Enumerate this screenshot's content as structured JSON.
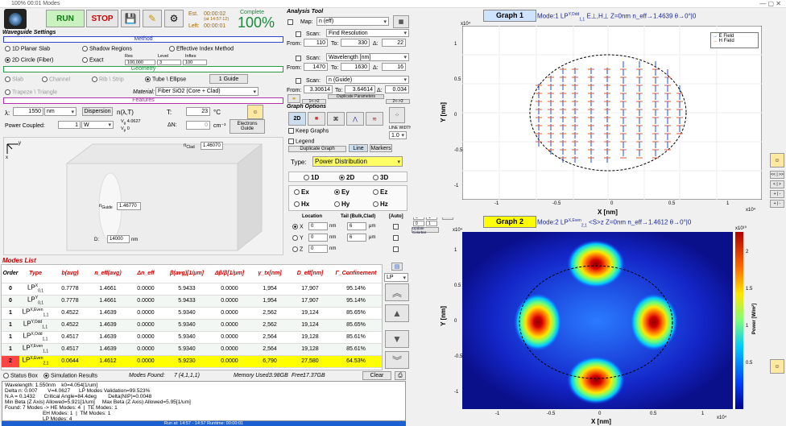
{
  "window": {
    "title": "100%  00:01 Modes"
  },
  "toolbar": {
    "run": "RUN",
    "stop": "STOP",
    "est_label": "Est.",
    "est_time": "00:00:02",
    "clock": "(at 14:57:12)",
    "left_label": "Left:",
    "left_time": "00:00:01",
    "complete_label": "Complete",
    "complete_pct": "100%"
  },
  "settings": {
    "title": "Waveguide Settings",
    "method_header": "Method",
    "geometry_header": "Geometry",
    "features_header": "Features",
    "methods": [
      "1D Planar Slab",
      "Shadow Regions",
      "Effective Index Method",
      "2D Circle (Fiber)",
      "Exact"
    ],
    "res_hdr": "Res",
    "level_hdr": "Level",
    "inftes_hdr": "Inftes",
    "res": "100,000",
    "level": "3",
    "inftes": "100",
    "geo_types": [
      "Slab",
      "Channel",
      "Rib \\ Strip",
      "Tube \\ Ellipse",
      "Trapeze \\ Triangle"
    ],
    "guide_btn": "1 Guide",
    "material_label": "Material:",
    "material": "Fiber SiO2 (Core + Clad)",
    "lambda_label": "λ:",
    "lambda": "1550",
    "lambda_unit": "nm",
    "dispersion": "Dispersion",
    "n_lt": "n(λ,T)",
    "T_label": "T:",
    "T": "23",
    "T_unit": "°C",
    "power_label": "Power Coupled:",
    "power": "1",
    "power_unit": "W",
    "vg": "4.0627",
    "vp": "0",
    "dn_label": "ΔN:",
    "dn": "0",
    "dn_unit": "cm⁻³",
    "electrons": "Electrons",
    "guide": "Guide",
    "nclad_label": "n",
    "nclad_sub": "Clad",
    "nclad": "1.46070",
    "nguide_label": "n",
    "nguide_sub": "Guide",
    "nguide": "1.46770",
    "D_label": "D:",
    "D": "14000",
    "D_unit": "nm"
  },
  "analysis": {
    "title": "Analysis Tool",
    "map": "Map:",
    "map_val": "n (eff)",
    "scan_label": "Scan:",
    "scan1": "Find Resolution",
    "from": "From:",
    "to": "To:",
    "delta": "Δ:",
    "s1_from": "110",
    "s1_to": "330",
    "s1_d": "22",
    "scan2": "Wavelength [nm]",
    "s2_from": "1470",
    "s2_to": "1630",
    "s2_d": "16",
    "scan3": "n (Guide)",
    "s3_from": "3.30614",
    "s3_to": "3.64614",
    "s3_d": "0.034",
    "dup": "Duplicate Parameters",
    "b12": "1<->2",
    "b23": "2<->3"
  },
  "graph_opts": {
    "title": "Graph Options",
    "btn2d": "2D",
    "keep": "Keep Graphs",
    "legend": "Legend",
    "line_width": "LINE WIDTH",
    "lw": "1.0",
    "dupgraph": "Duplicate Graph",
    "line": "Line",
    "markers": "Markers",
    "type_label": "Type:",
    "type": "Power Distribution",
    "d1": "1D",
    "d2": "2D",
    "d3": "3D",
    "fields": [
      "Ex",
      "Ey",
      "Ez",
      "Hx",
      "Hy",
      "Hz"
    ],
    "loc": "Location",
    "tail": "Tail (Bulk,Clad)",
    "auto": "[Auto]",
    "x": "X",
    "y": "Y",
    "z": "Z",
    "xv": "0",
    "yv": "0",
    "zv": "0",
    "nm": "nm",
    "t1": "6",
    "t2": "6",
    "um": "μm",
    "axis_lim": "AXIS LIMIT",
    "ax": [
      "0",
      "1",
      "0",
      "1",
      "0",
      "1"
    ],
    "update": "Update Colorbar"
  },
  "modes": {
    "title": "Modes List",
    "headers": [
      "Order",
      "Type",
      "b(avg)",
      "n_eff(avg)",
      "Δn_eff",
      "β(avg)[1/μm]",
      "Δβ/β[1/μm]",
      "γ_tx[nm]",
      "D_eff[nm]",
      "Γ_Confinement"
    ],
    "rows": [
      [
        "0",
        "LP",
        "0,1",
        "X",
        "0.7778",
        "1.4661",
        "0.0000",
        "5.9433",
        "0.0000",
        "1,954",
        "17,907",
        "95.14%"
      ],
      [
        "0",
        "LP",
        "0,1",
        "Y",
        "0.7778",
        "1.4661",
        "0.0000",
        "5.9433",
        "0.0000",
        "1,954",
        "17,907",
        "95.14%"
      ],
      [
        "1",
        "LP",
        "1,1",
        "X,Even",
        "0.4522",
        "1.4639",
        "0.0000",
        "5.9340",
        "0.0000",
        "2,562",
        "19,124",
        "85.65%"
      ],
      [
        "1",
        "LP",
        "1,1",
        "Y,Odd",
        "0.4522",
        "1.4639",
        "0.0000",
        "5.9340",
        "0.0000",
        "2,562",
        "19,124",
        "85.65%"
      ],
      [
        "1",
        "LP",
        "1,1",
        "X,Odd",
        "0.4517",
        "1.4639",
        "0.0000",
        "5.9340",
        "0.0000",
        "2,564",
        "19,128",
        "85.61%"
      ],
      [
        "1",
        "LP",
        "1,1",
        "Y,Even",
        "0.4517",
        "1.4639",
        "0.0000",
        "5.9340",
        "0.0000",
        "2,564",
        "19,128",
        "85.61%"
      ],
      [
        "2",
        "LP",
        "2,1",
        "X,Even",
        "0.0644",
        "1.4612",
        "0.0000",
        "5.9230",
        "0.0000",
        "6,790",
        "27,580",
        "64.53%"
      ]
    ],
    "filter": "LP"
  },
  "status": {
    "status_box": "Status Box",
    "sim_results": "Simulation Results",
    "found_label": "Modes Found:",
    "found": "7 (4,1,1,1)",
    "mem_label": "Memory Used:",
    "mem": "3.98GB",
    "free_label": "Free:",
    "free": "17.37GB",
    "clear": "Clear",
    "log": "Wavelength: 1.550nm    k0=4.054[1/um]\nDelta n: 0.007       V=4.0627      LP Modes Validation=99.523%\nN.A = 0.1432      Critical Angle=84.4deg        Delta(NIP)=0.0048\nMin Beta (Z Axis) Allowed=5.921[1/um]     Max Beta (Z Axis) Allowed=5.95[1/um]\nFound: 7 Modes -> HE Modes: 4  |  TE Modes: 1\n                          EH Modes: 1  |  TM Modes: 1\n                          LP Modes: 4",
    "runbar": "Run at: 14:57 - 14:57     Runtime: 00:00:01"
  },
  "graph1": {
    "title": "Graph 1",
    "mode": "Mode:1",
    "lp": "LP",
    "sup": "Y,Odd",
    "sub": "1,1",
    "pol": "E⊥,H⊥",
    "z": "Z=0nm",
    "neff": "n_eff→1.4639",
    "theta": "θ→0°|0",
    "xlabel": "X [nm]",
    "ylabel": "Y [nm]",
    "exp": "x10⁴",
    "xticks": [
      "-1",
      "-0.5",
      "0",
      "0.5",
      "1"
    ],
    "yticks": [
      "1",
      "0.5",
      "0",
      "-0.5",
      "-1"
    ],
    "legend": [
      "E Field",
      "H Field"
    ],
    "colors": {
      "e": "#1f4fd6",
      "h": "#e35b3a"
    }
  },
  "graph2": {
    "title": "Graph 2",
    "mode": "Mode:2",
    "lp": "LP",
    "sup": "X,Even",
    "sub": "2,1",
    "s": "<S>z",
    "z": "Z=0nm",
    "neff": "n_eff→1.4612",
    "theta": "θ→0°|0",
    "xlabel": "X [nm]",
    "ylabel": "Y [nm]",
    "exp": "x10⁴",
    "cb_exp": "x10¹⁰",
    "cb_label": "Power [W/m²]",
    "xticks": [
      "-1",
      "-0.5",
      "0",
      "0.5",
      "1"
    ],
    "yticks": [
      "1",
      "0.5",
      "0",
      "-0.5",
      "-1"
    ],
    "cbticks": [
      "2",
      "1.5",
      "1",
      "0.5"
    ]
  },
  "side_btns": [
    "<< | >>",
    "< | >",
    "+ | -",
    "+ | -"
  ]
}
